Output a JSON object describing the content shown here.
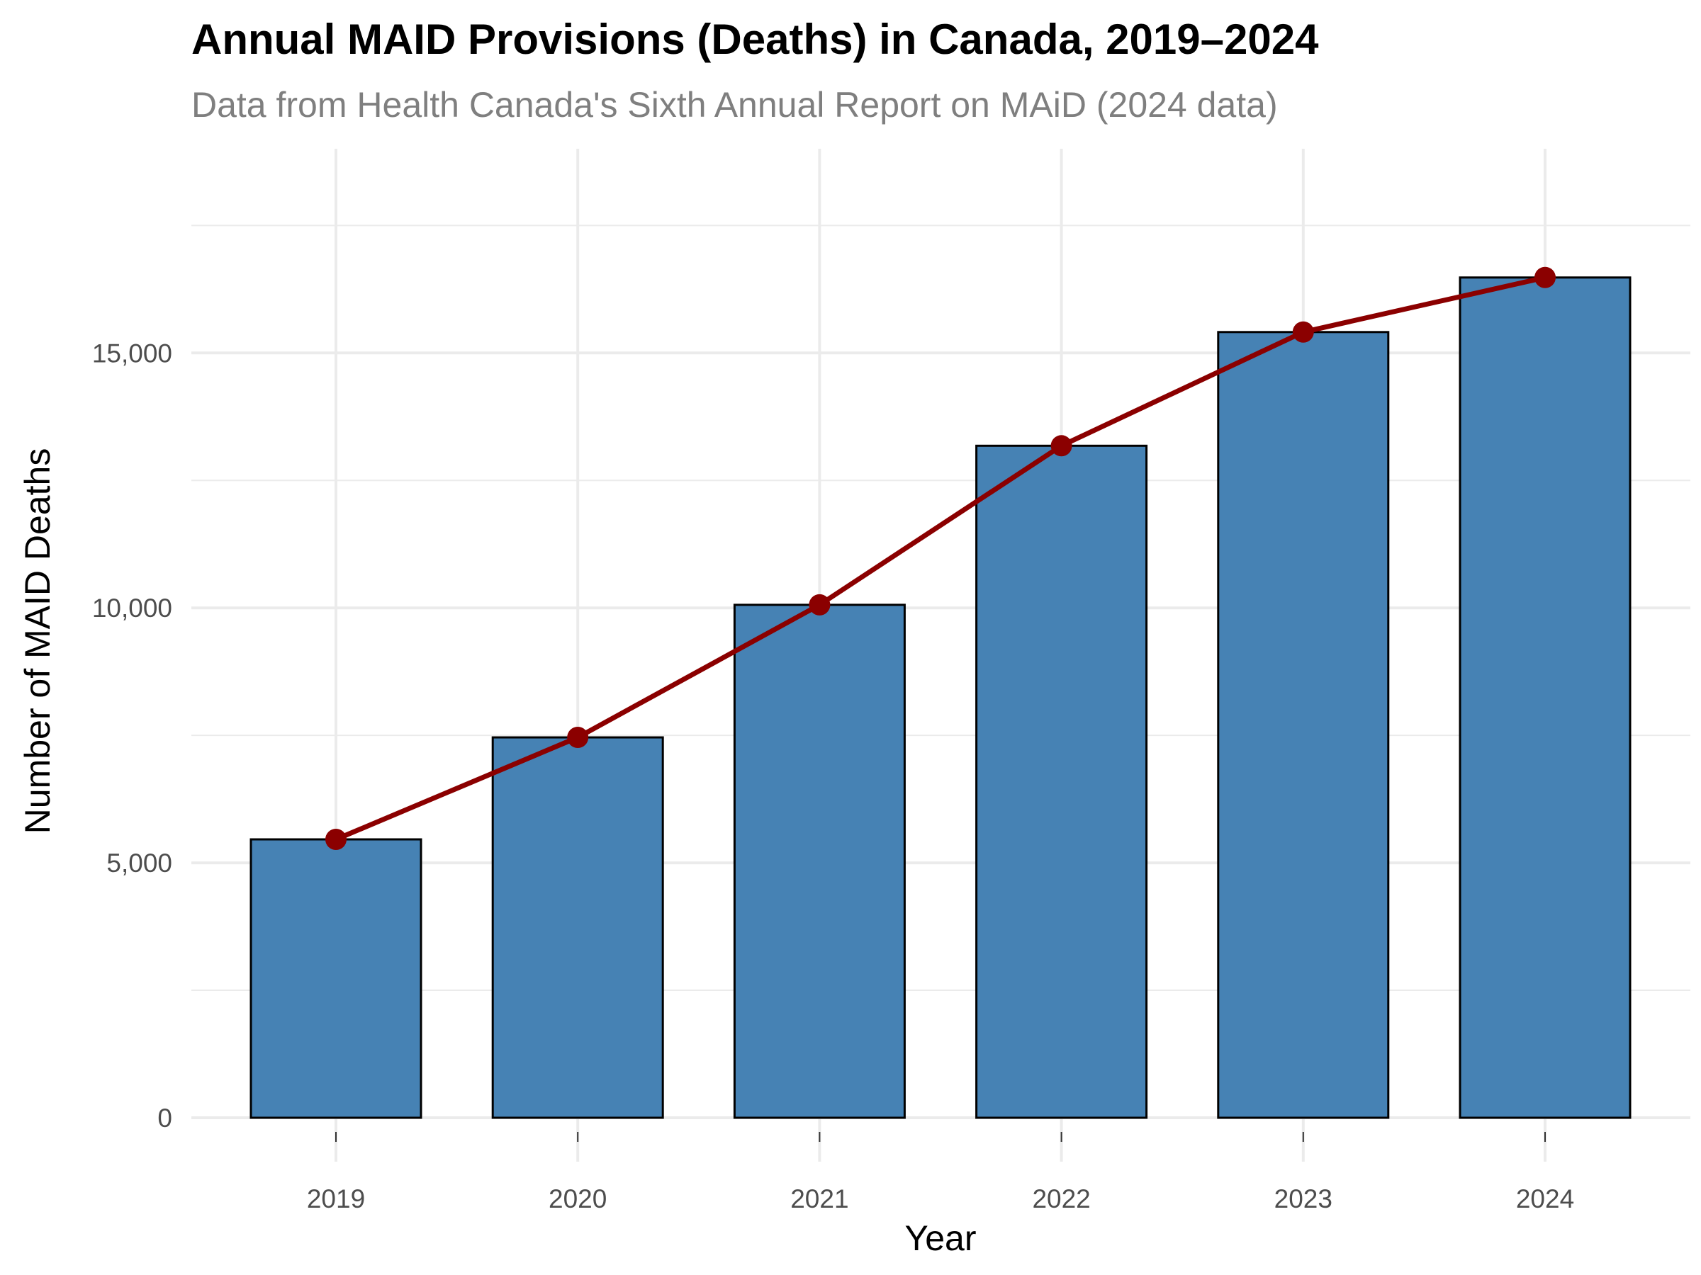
{
  "chart_data": {
    "type": "bar",
    "title": "Annual MAID Provisions (Deaths) in Canada, 2019–2024",
    "subtitle": "Data from Health Canada's Sixth Annual Report on MAiD (2024 data)",
    "xlabel": "Year",
    "ylabel": "Number of MAID Deaths",
    "categories": [
      "2019",
      "2020",
      "2021",
      "2022",
      "2023",
      "2024"
    ],
    "values": [
      5460,
      7460,
      10060,
      13180,
      15410,
      16480
    ],
    "ylim": [
      -1000,
      18250
    ],
    "yticks": [
      0,
      5000,
      10000,
      15000
    ],
    "ytick_labels": [
      "0",
      "5,000",
      "10,000",
      "15,000"
    ],
    "yminor": [
      2500,
      7500,
      12500,
      17500
    ],
    "grid": true,
    "legend": "none",
    "overlay": {
      "type": "line",
      "markers": true,
      "values": [
        5460,
        7460,
        10060,
        13180,
        15410,
        16480
      ]
    },
    "colors": {
      "bar_fill": "#4682b4",
      "bar_stroke": "#000000",
      "line": "#8b0000"
    }
  }
}
